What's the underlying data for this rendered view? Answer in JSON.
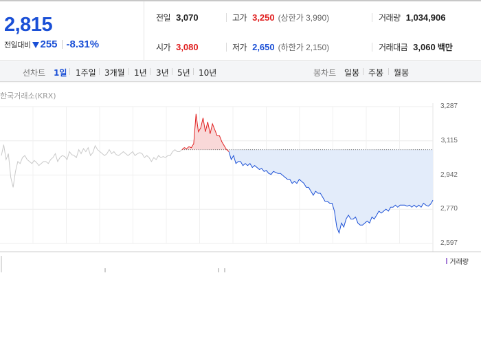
{
  "summary": {
    "price": "2,815",
    "change_label": "전일대비",
    "change_value": "255",
    "change_pct": "-8.31%",
    "down_icon": "triangle-down-icon",
    "prev_close_label": "전일",
    "prev_close": "3,070",
    "high_label": "고가",
    "high": "3,250",
    "upper_limit": "(상한가 3,990)",
    "volume_label": "거래량",
    "volume": "1,034,906",
    "open_label": "시가",
    "open": "3,080",
    "low_label": "저가",
    "low": "2,650",
    "lower_limit": "(하한가 2,150)",
    "value_label": "거래대금",
    "value": "3,060",
    "value_unit": "백만"
  },
  "tabs": {
    "line_title": "선차트",
    "line": [
      "1일",
      "1주일",
      "3개월",
      "1년",
      "3년",
      "5년",
      "10년"
    ],
    "candle_title": "봉차트",
    "candle": [
      "일봉",
      "주봉",
      "월봉"
    ],
    "active": "1일"
  },
  "chart": {
    "source": "한국거래소(KRX)",
    "volume_legend": "거래량"
  },
  "colors": {
    "up": "#e02020",
    "down": "#1a4fd6",
    "prev_line": "#c9c9c9",
    "fill_down": "#e3ecfa",
    "fill_up": "#f9d8d8"
  },
  "chart_data": {
    "type": "line",
    "title": "",
    "xlabel": "",
    "ylabel": "",
    "y_ticks": [
      "3,287",
      "3,115",
      "2,942",
      "2,770",
      "2,597"
    ],
    "ylim": [
      2597,
      3287
    ],
    "reference": 3070,
    "series": [
      {
        "y": [
          3040,
          3095,
          3020,
          3050,
          2930,
          2880,
          2960,
          3010,
          3000,
          3030,
          3040,
          3020,
          3010,
          3000,
          3015,
          3005,
          2990,
          3000,
          3010,
          3010,
          3000,
          3020,
          3030,
          3050,
          3010,
          3030,
          3040,
          3035,
          3020,
          3060,
          3045,
          3040,
          3030,
          3070,
          3050,
          3075,
          3060,
          3080,
          3040,
          3055,
          3090,
          3070,
          3060,
          3050,
          3040,
          3050,
          3070,
          3050,
          3060,
          3045,
          3040,
          3050,
          3060,
          3050,
          3040,
          3050,
          3060,
          3040,
          3050,
          3055,
          3050,
          3030,
          3040,
          3030,
          3010,
          3030,
          3020,
          3040,
          3030,
          3035,
          3030,
          3040,
          3040,
          3060,
          3070,
          3060,
          3060,
          3070,
          3080,
          3075,
          3085,
          3080,
          3100,
          3250,
          3160,
          3180,
          3230,
          3160,
          3210,
          3150,
          3200,
          3170,
          3140,
          3140,
          3110,
          3090,
          3070,
          3060,
          3020,
          3040,
          3000,
          3010,
          3010,
          2990,
          3000,
          2990,
          3000,
          2980,
          2990,
          2980,
          2970,
          2975,
          2960,
          2965,
          2950,
          2945,
          2960,
          2955,
          2950,
          2950,
          2940,
          2930,
          2920,
          2920,
          2900,
          2910,
          2900,
          2920,
          2910,
          2900,
          2880,
          2880,
          2860,
          2840,
          2860,
          2850,
          2850,
          2830,
          2810,
          2810,
          2800,
          2800,
          2760,
          2680,
          2650,
          2700,
          2680,
          2720,
          2740,
          2720,
          2720,
          2730,
          2700,
          2690,
          2690,
          2700,
          2710,
          2700,
          2730,
          2720,
          2740,
          2760,
          2750,
          2760,
          2770,
          2760,
          2780,
          2780,
          2790,
          2780,
          2790,
          2790,
          2790,
          2785,
          2790,
          2780,
          2790,
          2780,
          2790,
          2780,
          2800,
          2790,
          2785,
          2795,
          2815
        ]
      }
    ]
  }
}
